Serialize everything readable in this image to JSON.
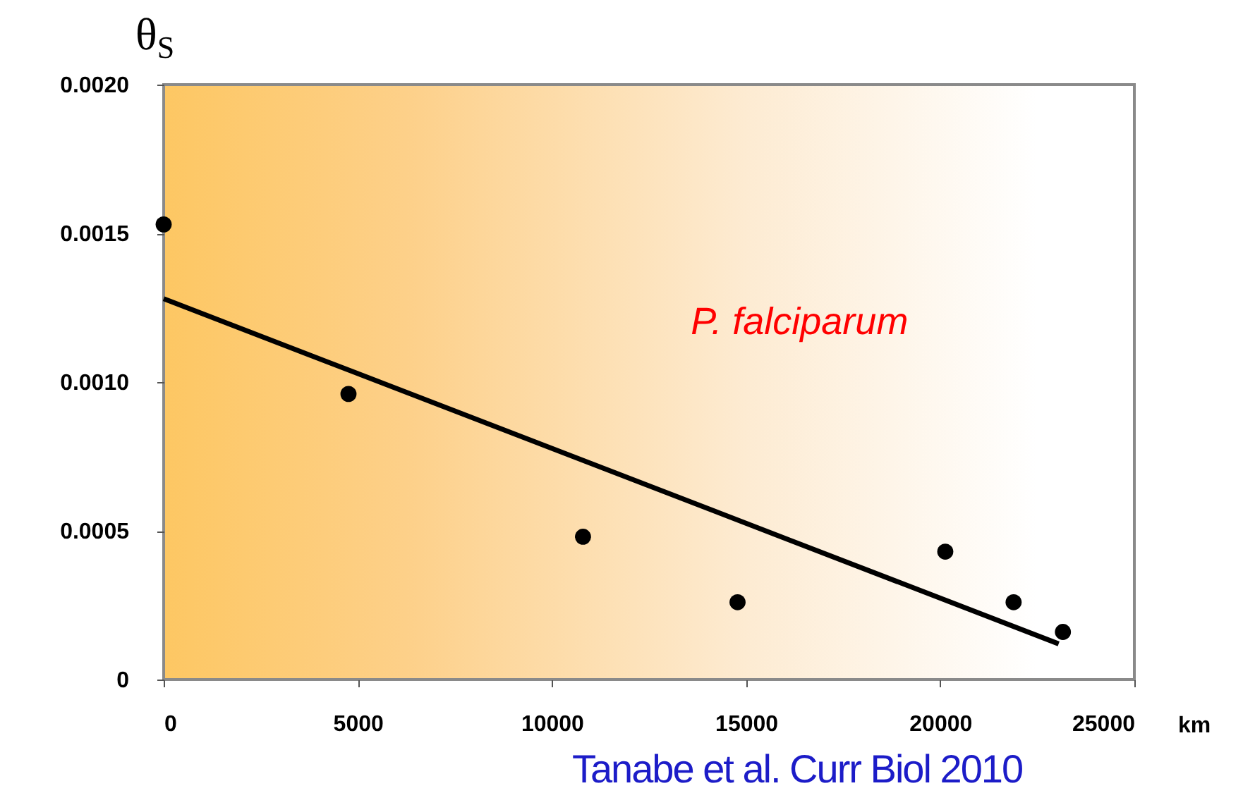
{
  "chart_data": {
    "type": "scatter",
    "ylabel": "θ$_{S}$",
    "xlabel": "km",
    "annotations": [
      "P. falciparum",
      "Tanabe et al. Curr Biol 2010"
    ],
    "xlim": [
      0,
      25000
    ],
    "xticks": [
      0,
      5000,
      10000,
      15000,
      20000,
      25000
    ],
    "ylim": [
      0,
      0.002
    ],
    "yticks": [
      {
        "value": 0,
        "label": "0"
      },
      {
        "value": 0.0005,
        "label": "0.0005"
      },
      {
        "value": 0.001,
        "label": "0.0010"
      },
      {
        "value": 0.0015,
        "label": "0.0015"
      },
      {
        "value": 0.002,
        "label": "0.0020"
      }
    ],
    "grid": false,
    "series": [
      {
        "color": "#000000",
        "marker": "circle",
        "x": [
          0,
          4760,
          10800,
          14780,
          20130,
          21890,
          23160
        ],
        "values": [
          0.00153,
          0.00096,
          0.00048,
          0.00026,
          0.00043,
          0.00026,
          0.00016
        ]
      },
      {
        "type": "line",
        "color": "#000000",
        "line_style": "solid",
        "x": [
          0,
          23050
        ],
        "values": [
          0.00128,
          0.00012
        ]
      }
    ]
  }
}
